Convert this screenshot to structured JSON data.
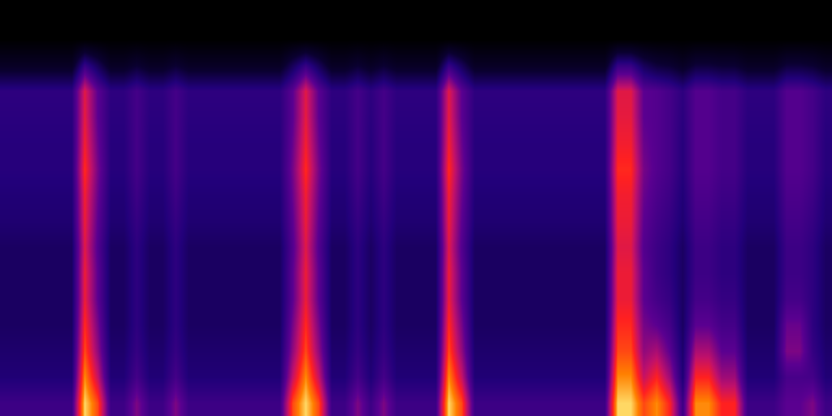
{
  "chart_data": {
    "type": "heatmap",
    "zlim": [
      0,
      100
    ],
    "tick_labels": false,
    "grid": false,
    "z": [
      [
        42,
        42,
        42,
        42,
        42,
        42,
        96,
        80,
        42,
        42,
        55,
        42,
        42,
        55,
        42,
        42,
        42,
        42,
        42,
        42,
        42,
        42,
        80,
        96,
        80,
        42,
        42,
        55,
        42,
        55,
        42,
        42,
        42,
        42,
        96,
        80,
        42,
        42,
        42,
        42,
        42,
        42,
        42,
        42,
        42,
        42,
        42,
        96,
        96,
        80,
        88,
        75,
        42,
        88,
        88,
        75,
        75,
        42,
        42,
        42,
        50,
        50,
        55,
        42
      ],
      [
        34,
        34,
        34,
        34,
        34,
        34,
        88,
        66,
        34,
        34,
        44,
        34,
        34,
        44,
        34,
        34,
        34,
        34,
        34,
        34,
        34,
        34,
        66,
        88,
        66,
        34,
        34,
        44,
        34,
        44,
        34,
        34,
        34,
        34,
        88,
        66,
        34,
        34,
        34,
        34,
        34,
        34,
        34,
        34,
        34,
        34,
        34,
        88,
        88,
        66,
        75,
        60,
        34,
        75,
        75,
        60,
        60,
        34,
        34,
        34,
        45,
        45,
        44,
        34
      ],
      [
        32,
        32,
        32,
        32,
        32,
        32,
        80,
        58,
        32,
        32,
        40,
        32,
        32,
        40,
        32,
        32,
        32,
        32,
        32,
        32,
        32,
        32,
        58,
        80,
        58,
        32,
        32,
        40,
        32,
        40,
        32,
        32,
        32,
        32,
        80,
        58,
        32,
        32,
        32,
        32,
        32,
        32,
        32,
        32,
        32,
        32,
        32,
        80,
        80,
        58,
        62,
        50,
        32,
        62,
        62,
        50,
        50,
        32,
        32,
        32,
        55,
        55,
        40,
        32
      ],
      [
        30,
        30,
        30,
        30,
        30,
        30,
        76,
        54,
        30,
        30,
        38,
        30,
        30,
        38,
        30,
        30,
        30,
        30,
        30,
        30,
        30,
        30,
        54,
        76,
        54,
        30,
        30,
        38,
        30,
        38,
        30,
        30,
        30,
        30,
        76,
        54,
        30,
        30,
        30,
        30,
        30,
        30,
        30,
        30,
        30,
        30,
        30,
        76,
        76,
        54,
        50,
        44,
        30,
        50,
        50,
        44,
        44,
        30,
        30,
        30,
        52,
        52,
        38,
        30
      ],
      [
        30,
        30,
        30,
        30,
        30,
        30,
        72,
        50,
        30,
        30,
        38,
        30,
        30,
        38,
        30,
        30,
        30,
        30,
        30,
        30,
        30,
        30,
        50,
        72,
        50,
        30,
        30,
        38,
        30,
        38,
        30,
        30,
        30,
        30,
        72,
        50,
        30,
        30,
        30,
        30,
        30,
        30,
        30,
        30,
        30,
        30,
        30,
        72,
        72,
        50,
        44,
        40,
        30,
        44,
        44,
        40,
        40,
        30,
        30,
        30,
        44,
        44,
        38,
        30
      ],
      [
        30,
        30,
        30,
        30,
        30,
        30,
        72,
        50,
        30,
        30,
        38,
        30,
        30,
        38,
        30,
        30,
        30,
        30,
        30,
        30,
        30,
        30,
        50,
        72,
        50,
        30,
        30,
        38,
        30,
        38,
        30,
        30,
        30,
        30,
        72,
        50,
        30,
        30,
        30,
        30,
        30,
        30,
        30,
        30,
        30,
        30,
        30,
        72,
        72,
        50,
        42,
        38,
        30,
        42,
        42,
        38,
        38,
        30,
        30,
        30,
        42,
        42,
        38,
        30
      ],
      [
        30,
        30,
        30,
        30,
        30,
        30,
        70,
        48,
        30,
        30,
        38,
        30,
        30,
        38,
        30,
        30,
        30,
        30,
        30,
        30,
        30,
        30,
        48,
        70,
        48,
        30,
        30,
        38,
        30,
        38,
        30,
        30,
        30,
        30,
        70,
        48,
        30,
        30,
        30,
        30,
        30,
        30,
        30,
        30,
        30,
        30,
        30,
        70,
        70,
        48,
        42,
        38,
        30,
        42,
        42,
        38,
        38,
        30,
        30,
        30,
        42,
        42,
        38,
        30
      ],
      [
        33,
        33,
        33,
        33,
        33,
        33,
        72,
        50,
        33,
        33,
        40,
        33,
        33,
        40,
        33,
        33,
        33,
        33,
        33,
        33,
        33,
        33,
        50,
        72,
        50,
        33,
        33,
        40,
        33,
        40,
        33,
        33,
        33,
        33,
        72,
        50,
        33,
        33,
        33,
        33,
        33,
        33,
        33,
        33,
        33,
        33,
        33,
        72,
        72,
        50,
        44,
        40,
        33,
        44,
        44,
        40,
        40,
        33,
        33,
        33,
        44,
        44,
        40,
        33
      ],
      [
        34,
        34,
        34,
        34,
        34,
        34,
        73,
        52,
        34,
        34,
        42,
        34,
        34,
        42,
        34,
        34,
        34,
        34,
        34,
        34,
        34,
        34,
        52,
        73,
        52,
        34,
        34,
        42,
        34,
        42,
        34,
        34,
        34,
        34,
        73,
        52,
        34,
        34,
        34,
        34,
        34,
        34,
        34,
        34,
        34,
        34,
        34,
        73,
        73,
        52,
        46,
        42,
        34,
        46,
        46,
        42,
        42,
        34,
        34,
        34,
        46,
        46,
        42,
        34
      ],
      [
        36,
        36,
        36,
        36,
        36,
        36,
        76,
        54,
        36,
        36,
        44,
        36,
        36,
        44,
        36,
        36,
        36,
        36,
        36,
        36,
        36,
        36,
        54,
        76,
        54,
        36,
        36,
        44,
        36,
        44,
        36,
        36,
        36,
        36,
        76,
        54,
        36,
        36,
        36,
        36,
        36,
        36,
        36,
        36,
        36,
        36,
        36,
        76,
        76,
        54,
        48,
        44,
        36,
        48,
        48,
        44,
        44,
        36,
        36,
        36,
        48,
        48,
        44,
        36
      ],
      [
        36,
        36,
        36,
        36,
        36,
        36,
        73,
        52,
        36,
        36,
        44,
        36,
        36,
        44,
        36,
        36,
        36,
        36,
        36,
        36,
        36,
        36,
        52,
        73,
        52,
        36,
        36,
        44,
        36,
        44,
        36,
        36,
        36,
        36,
        73,
        52,
        36,
        36,
        36,
        36,
        36,
        36,
        36,
        36,
        36,
        36,
        36,
        73,
        73,
        52,
        48,
        44,
        36,
        48,
        48,
        44,
        44,
        36,
        36,
        36,
        48,
        48,
        44,
        36
      ],
      [
        37,
        37,
        37,
        37,
        37,
        37,
        71,
        50,
        37,
        37,
        44,
        37,
        37,
        44,
        37,
        37,
        37,
        37,
        37,
        37,
        37,
        37,
        50,
        71,
        50,
        37,
        37,
        44,
        37,
        44,
        37,
        37,
        37,
        37,
        71,
        50,
        37,
        37,
        37,
        37,
        37,
        37,
        37,
        37,
        37,
        37,
        37,
        71,
        71,
        50,
        48,
        44,
        37,
        48,
        48,
        44,
        44,
        37,
        37,
        37,
        48,
        48,
        44,
        37
      ],
      [
        38,
        38,
        38,
        38,
        38,
        38,
        70,
        50,
        38,
        38,
        44,
        38,
        38,
        44,
        38,
        38,
        38,
        38,
        38,
        38,
        38,
        38,
        50,
        70,
        50,
        38,
        38,
        44,
        38,
        44,
        38,
        38,
        38,
        38,
        70,
        50,
        38,
        38,
        38,
        38,
        38,
        38,
        38,
        38,
        38,
        38,
        38,
        70,
        70,
        50,
        48,
        44,
        38,
        48,
        48,
        44,
        44,
        38,
        38,
        38,
        48,
        48,
        44,
        38
      ],
      [
        15,
        15,
        15,
        15,
        15,
        15,
        40,
        28,
        15,
        15,
        20,
        15,
        15,
        20,
        15,
        15,
        15,
        15,
        15,
        15,
        15,
        15,
        28,
        40,
        28,
        15,
        15,
        20,
        15,
        20,
        15,
        15,
        15,
        15,
        40,
        28,
        15,
        15,
        15,
        15,
        15,
        15,
        15,
        15,
        15,
        15,
        15,
        40,
        40,
        28,
        22,
        20,
        15,
        22,
        22,
        20,
        20,
        15,
        15,
        15,
        22,
        22,
        20,
        15
      ],
      [
        0,
        0,
        0,
        0,
        0,
        0,
        0,
        0,
        0,
        0,
        0,
        0,
        0,
        0,
        0,
        0,
        0,
        0,
        0,
        0,
        0,
        0,
        0,
        0,
        0,
        0,
        0,
        0,
        0,
        0,
        0,
        0,
        0,
        0,
        0,
        0,
        0,
        0,
        0,
        0,
        0,
        0,
        0,
        0,
        0,
        0,
        0,
        0,
        0,
        0,
        0,
        0,
        0,
        0,
        0,
        0,
        0,
        0,
        0,
        0,
        0,
        0,
        0,
        0
      ],
      [
        0,
        0,
        0,
        0,
        0,
        0,
        0,
        0,
        0,
        0,
        0,
        0,
        0,
        0,
        0,
        0,
        0,
        0,
        0,
        0,
        0,
        0,
        0,
        0,
        0,
        0,
        0,
        0,
        0,
        0,
        0,
        0,
        0,
        0,
        0,
        0,
        0,
        0,
        0,
        0,
        0,
        0,
        0,
        0,
        0,
        0,
        0,
        0,
        0,
        0,
        0,
        0,
        0,
        0,
        0,
        0,
        0,
        0,
        0,
        0,
        0,
        0,
        0,
        0
      ]
    ]
  }
}
